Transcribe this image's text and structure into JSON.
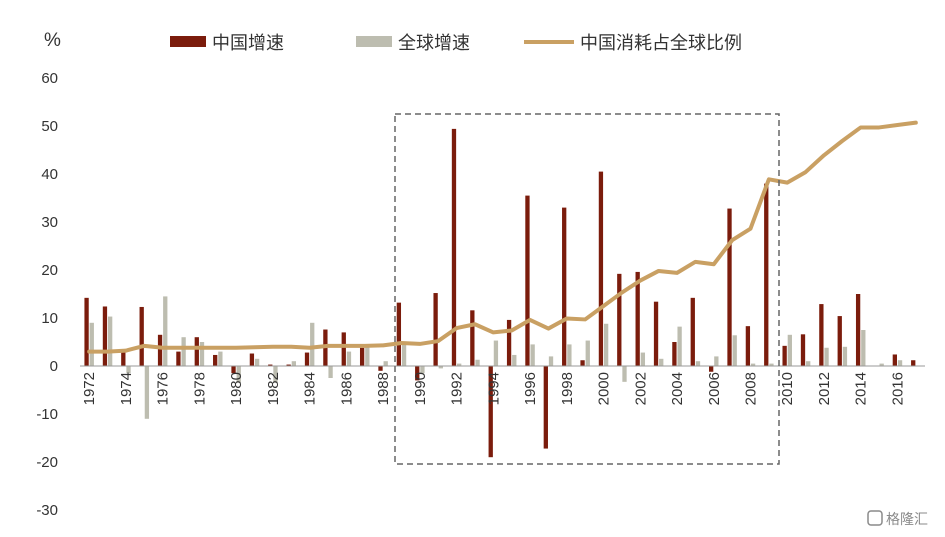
{
  "chart_data": {
    "type": "bar",
    "unit_label": "%",
    "ylim": [
      -30,
      60
    ],
    "yticks": [
      -30,
      -20,
      -10,
      0,
      10,
      20,
      30,
      40,
      50,
      60
    ],
    "grid": false,
    "legend_position": "top",
    "x": [
      1972,
      1973,
      1974,
      1975,
      1976,
      1977,
      1978,
      1979,
      1980,
      1981,
      1982,
      1983,
      1984,
      1985,
      1986,
      1987,
      1988,
      1989,
      1990,
      1991,
      1992,
      1993,
      1994,
      1995,
      1996,
      1997,
      1998,
      1999,
      2000,
      2001,
      2002,
      2003,
      2004,
      2005,
      2006,
      2007,
      2008,
      2009,
      2010,
      2011,
      2012,
      2013,
      2014,
      2015,
      2016,
      2017
    ],
    "xtick_labels": [
      "1972",
      "1974",
      "1976",
      "1978",
      "1980",
      "1982",
      "1984",
      "1986",
      "1988",
      "1990",
      "1992",
      "1994",
      "1996",
      "1998",
      "2000",
      "2002",
      "2004",
      "2006",
      "2008",
      "2010",
      "2012",
      "2014",
      "2016"
    ],
    "series": [
      {
        "name": "中国增速",
        "type": "bar",
        "color": "#7b1c0c",
        "values": [
          14.2,
          12.4,
          3.0,
          12.3,
          6.5,
          3.0,
          6.0,
          2.3,
          -1.5,
          2.6,
          0.3,
          0.3,
          2.8,
          7.6,
          7.0,
          3.8,
          -1.0,
          13.2,
          -3.0,
          15.2,
          49.4,
          11.6,
          -19.0,
          9.6,
          35.5,
          -17.2,
          33.0,
          1.2,
          40.5,
          19.2,
          19.6,
          13.4,
          5.0,
          14.2,
          -1.2,
          32.8,
          8.3,
          38.0,
          4.2,
          6.6,
          12.9,
          10.4,
          15.0,
          0.0,
          2.4,
          1.2
        ]
      },
      {
        "name": "全球增速",
        "type": "bar",
        "color": "#bdbdb0",
        "values": [
          9.0,
          10.3,
          -1.5,
          -11.0,
          14.5,
          6.0,
          5.0,
          3.0,
          -3.5,
          1.5,
          -3.5,
          1.0,
          9.0,
          -2.5,
          3.0,
          4.0,
          1.0,
          5.0,
          -1.5,
          -0.5,
          0.5,
          1.3,
          5.3,
          2.3,
          4.5,
          2.0,
          4.5,
          5.3,
          8.8,
          -3.3,
          2.8,
          1.5,
          8.2,
          1.0,
          2.0,
          6.4,
          0.5,
          0.5,
          6.5,
          1.0,
          3.8,
          4.0,
          7.5,
          0.5,
          1.2,
          0.0
        ]
      },
      {
        "name": "中国消耗占全球比例",
        "type": "line",
        "color": "#c9a063",
        "values": [
          3.0,
          3.0,
          3.2,
          4.2,
          3.8,
          3.8,
          3.8,
          3.8,
          3.8,
          3.9,
          4.0,
          4.0,
          3.8,
          4.2,
          4.2,
          4.2,
          4.3,
          4.8,
          4.6,
          5.2,
          7.9,
          8.7,
          7.0,
          7.4,
          9.6,
          7.8,
          9.9,
          9.7,
          12.5,
          15.3,
          17.8,
          19.8,
          19.4,
          21.7,
          21.2,
          26.2,
          28.6,
          38.9,
          38.2,
          40.4,
          43.9,
          46.9,
          49.7,
          49.7,
          50.2,
          50.7
        ]
      }
    ]
  },
  "watermark": "格隆汇"
}
